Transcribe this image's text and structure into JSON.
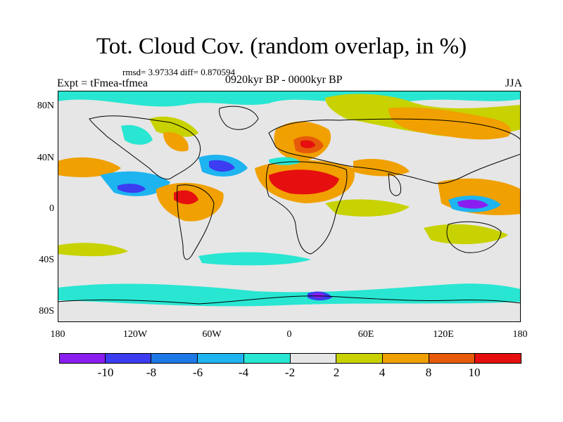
{
  "title": "Tot. Cloud Cov. (random overlap, in %)",
  "stats": "rmsd= 3.97334 diff= 0.870594",
  "expt": "Expt = tFmea-tfmea",
  "period": "0920kyr BP - 0000kyr BP",
  "season": "JJA",
  "lat_labels": [
    "80N",
    "40N",
    "0",
    "40S",
    "80S"
  ],
  "lon_labels": [
    "180",
    "120W",
    "60W",
    "0",
    "60E",
    "120E",
    "180"
  ],
  "colorbar": {
    "labels": [
      "-10",
      "-8",
      "-6",
      "-4",
      "-2",
      "2",
      "4",
      "8",
      "10"
    ],
    "colors": [
      "#8a1ef0",
      "#3c3cf0",
      "#1e78e6",
      "#1eb4f0",
      "#28e6d2",
      "#e6e6e6",
      "#c8d200",
      "#f0a000",
      "#e65a0a",
      "#e60f0f"
    ]
  },
  "map_colors": {
    "neutral": "#e6e6e6",
    "coast": "#000000"
  }
}
